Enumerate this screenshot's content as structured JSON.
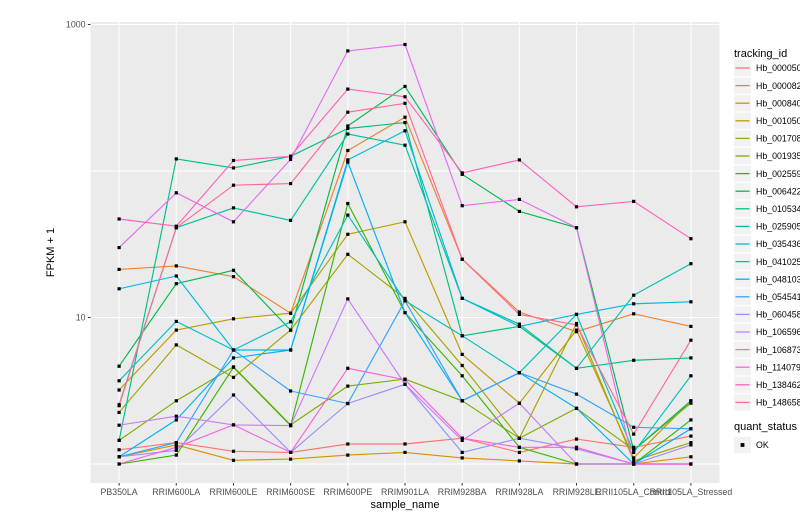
{
  "chart_data": {
    "type": "line",
    "title": "",
    "xlabel": "sample_name",
    "ylabel": "FPKM + 1",
    "y_scale": "log10",
    "ylim": [
      1,
      1000
    ],
    "y_tick_labels": [
      10,
      1000
    ],
    "grid_y_values": [
      1,
      10,
      100,
      1000
    ],
    "grid": true,
    "legend_position": "right",
    "legend_title": "tracking_id",
    "legend2_title": "quant_status",
    "legend2_items": [
      "OK"
    ],
    "panel_bg": "#EBEBEB",
    "grid_color": "#FFFFFF",
    "point_color": "#000000",
    "tick_text_color": "#4d4d4d",
    "categories": [
      "PB350LA",
      "RRIM600LA",
      "RRIM600LE",
      "RRIM600SE",
      "RRIM600PE",
      "RRIM901LA",
      "RRIM928BA",
      "RRIM928LA",
      "RRIM928LE",
      "RRII105LA_Control",
      "RRII105LA_Stressed"
    ],
    "series": [
      {
        "name": "Hb_000050_140",
        "color": "#F8766D",
        "values": [
          1.25,
          1.4,
          1.22,
          1.2,
          1.37,
          1.37,
          1.5,
          1.2,
          1.48,
          1.3,
          1.55
        ]
      },
      {
        "name": "Hb_000082_020",
        "color": "#EA8331",
        "values": [
          21.3,
          22.5,
          19,
          10.7,
          138,
          233,
          25,
          10.9,
          8.0,
          10.6,
          8.7
        ]
      },
      {
        "name": "Hb_000840_060",
        "color": "#D89000",
        "values": [
          1.12,
          1.35,
          1.06,
          1.08,
          1.15,
          1.2,
          1.1,
          1.05,
          1.0,
          1.0,
          1.12
        ]
      },
      {
        "name": "Hb_001050_060",
        "color": "#C09B00",
        "values": [
          3.2,
          8.2,
          9.8,
          10.7,
          37,
          45,
          5.6,
          2.6,
          8.2,
          1.1,
          2.7
        ]
      },
      {
        "name": "Hb_001708_010",
        "color": "#A3A500",
        "values": [
          2.25,
          6.5,
          3.9,
          8.2,
          27,
          13.5,
          4.7,
          1.5,
          9.1,
          1.05,
          1.4
        ]
      },
      {
        "name": "Hb_001935_090",
        "color": "#7CAE00",
        "values": [
          1.45,
          2.7,
          4.6,
          1.85,
          3.4,
          3.8,
          2.7,
          1.5,
          2.4,
          1.25,
          2.6
        ]
      },
      {
        "name": "Hb_002559_130",
        "color": "#39B600",
        "values": [
          1.0,
          1.15,
          4.57,
          1.83,
          60,
          10.8,
          4.0,
          1.3,
          1.0,
          1.0,
          2.0
        ]
      },
      {
        "name": "Hb_006422_030",
        "color": "#00BB4E",
        "values": [
          4.65,
          17,
          21,
          8.2,
          203,
          378,
          95,
          53,
          41,
          1.24,
          2.7
        ]
      },
      {
        "name": "Hb_010534_050",
        "color": "#00C087",
        "values": [
          1.45,
          121,
          105,
          126,
          195,
          214,
          7.5,
          8.7,
          4.5,
          5.1,
          5.3
        ]
      },
      {
        "name": "Hb_025905_020",
        "color": "#00C1A3",
        "values": [
          2.54,
          41,
          56,
          46,
          179,
          150,
          13.5,
          9.0,
          4.5,
          14.2,
          23.3
        ]
      },
      {
        "name": "Hb_035436_010",
        "color": "#00BFC4",
        "values": [
          3.7,
          9.4,
          6.0,
          9.35,
          50,
          13,
          7.5,
          4.2,
          10.5,
          1.2,
          4.0
        ]
      },
      {
        "name": "Hb_041025_010",
        "color": "#00BAE0",
        "values": [
          15.7,
          19.2,
          6.0,
          6.0,
          119,
          188,
          13.5,
          8.7,
          10.5,
          12.4,
          12.8
        ]
      },
      {
        "name": "Hb_048103_010",
        "color": "#00B0F6",
        "values": [
          1.12,
          2.0,
          5.3,
          6.0,
          115,
          10.8,
          2.7,
          4.2,
          2.4,
          1.0,
          1.74
        ]
      },
      {
        "name": "Hb_054541_010",
        "color": "#35A2FF",
        "values": [
          1.12,
          1.4,
          6.0,
          3.15,
          2.59,
          13,
          2.7,
          4.2,
          3.0,
          1.78,
          1.74
        ]
      },
      {
        "name": "Hb_060458_010",
        "color": "#9590FF",
        "values": [
          1.12,
          1.24,
          2.96,
          1.2,
          2.59,
          3.5,
          1.2,
          1.5,
          1.27,
          1.0,
          1.35
        ]
      },
      {
        "name": "Hb_106596_010",
        "color": "#C77CFF",
        "values": [
          1.84,
          2.12,
          1.85,
          1.83,
          13.4,
          3.5,
          1.45,
          2.6,
          1.0,
          1.0,
          1.0
        ]
      },
      {
        "name": "Hb_106873_020",
        "color": "#E76BF3",
        "values": [
          30,
          71,
          45,
          120,
          660,
          730,
          58,
          64,
          41,
          1.0,
          1.0
        ]
      },
      {
        "name": "Hb_114079_010",
        "color": "#FA62DB",
        "values": [
          1.0,
          1.3,
          1.85,
          1.2,
          4.5,
          3.76,
          1.5,
          1.3,
          1.3,
          1.0,
          1.0
        ]
      },
      {
        "name": "Hb_138462_010",
        "color": "#FF62BC",
        "values": [
          47,
          42,
          118,
          126,
          362,
          321,
          97,
          119,
          57,
          62,
          34.5
        ]
      },
      {
        "name": "Hb_148658_010",
        "color": "#FF6A98",
        "values": [
          2.5,
          41,
          80,
          82,
          252,
          290,
          25,
          10.5,
          8.9,
          1.6,
          7.0
        ]
      }
    ]
  }
}
